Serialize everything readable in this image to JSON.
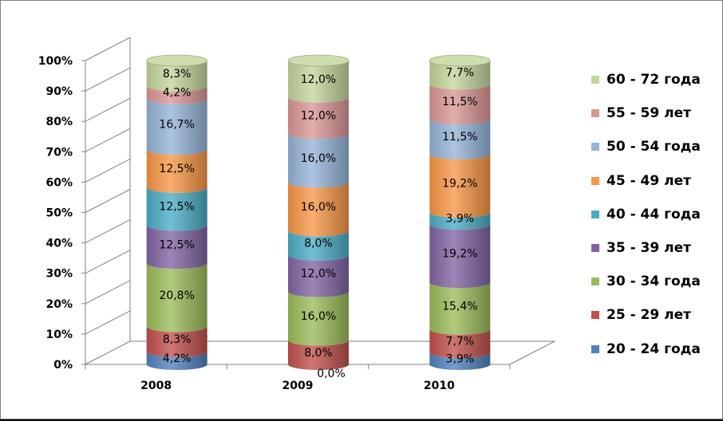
{
  "chart_data": {
    "type": "bar",
    "stacked": true,
    "style": "3d-cylinder",
    "categories": [
      "2008",
      "2009",
      "2010"
    ],
    "ylim": [
      0,
      100
    ],
    "yticks": [
      "0%",
      "10%",
      "20%",
      "30%",
      "40%",
      "50%",
      "60%",
      "70%",
      "80%",
      "90%",
      "100%"
    ],
    "grid": false,
    "legend_position": "right",
    "series": [
      {
        "name": "20 - 24 года",
        "color": "#4F81BD",
        "values": [
          4.2,
          0.0,
          3.9
        ],
        "labels": [
          "4,2%",
          "0,0%",
          "3,9%"
        ]
      },
      {
        "name": "25 - 29 лет",
        "color": "#C0504D",
        "values": [
          8.3,
          8.0,
          7.7
        ],
        "labels": [
          "8,3%",
          "8,0%",
          "7,7%"
        ]
      },
      {
        "name": "30 - 34 года",
        "color": "#9BBB59",
        "values": [
          20.8,
          16.0,
          15.4
        ],
        "labels": [
          "20,8%",
          "16,0%",
          "15,4%"
        ]
      },
      {
        "name": "35 - 39 лет",
        "color": "#8064A2",
        "values": [
          12.5,
          12.0,
          19.2
        ],
        "labels": [
          "12,5%",
          "12,0%",
          "19,2%"
        ]
      },
      {
        "name": "40 - 44 года",
        "color": "#4BACC6",
        "values": [
          12.5,
          8.0,
          3.9
        ],
        "labels": [
          "12,5%",
          "8,0%",
          "3,9%"
        ]
      },
      {
        "name": "45 - 49 лет",
        "color": "#F79646",
        "values": [
          12.5,
          16.0,
          19.2
        ],
        "labels": [
          "12,5%",
          "16,0%",
          "19,2%"
        ]
      },
      {
        "name": "50 - 54 года",
        "color": "#95B3D7",
        "values": [
          16.7,
          16.0,
          11.5
        ],
        "labels": [
          "16,7%",
          "16,0%",
          "11,5%"
        ]
      },
      {
        "name": "55 - 59 лет",
        "color": "#DA9694",
        "values": [
          4.2,
          12.0,
          11.5
        ],
        "labels": [
          "4,2%",
          "12,0%",
          "11,5%"
        ]
      },
      {
        "name": "60 - 72 года",
        "color": "#C3D69B",
        "values": [
          8.3,
          12.0,
          7.7
        ],
        "labels": [
          "8,3%",
          "12,0%",
          "7,7%"
        ]
      }
    ]
  }
}
